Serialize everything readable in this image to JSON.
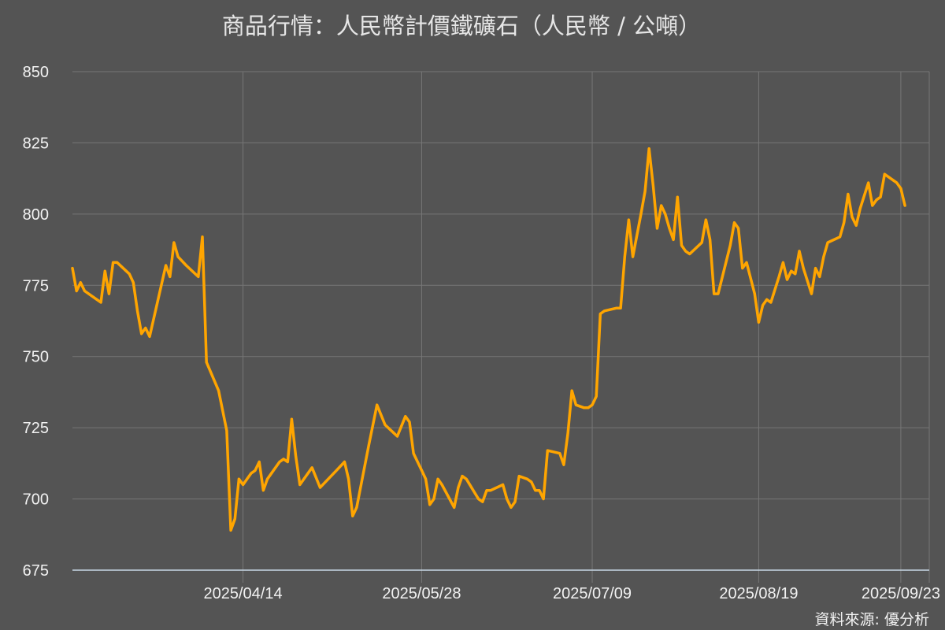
{
  "chart_data": {
    "type": "line",
    "title": "商品行情：人民幣計價鐵礦石（人民幣 / 公噸）",
    "source": "資料來源: 優分析",
    "ylim": [
      675,
      850
    ],
    "yticks": [
      675,
      700,
      725,
      750,
      775,
      800,
      825,
      850
    ],
    "xlim": [
      "2025-03-03",
      "2025-09-30"
    ],
    "xticks": [
      {
        "date": "2025-04-14",
        "label": "2025/04/14"
      },
      {
        "date": "2025-05-28",
        "label": "2025/05/28"
      },
      {
        "date": "2025-07-09",
        "label": "2025/07/09"
      },
      {
        "date": "2025-08-19",
        "label": "2025/08/19"
      },
      {
        "date": "2025-09-23",
        "label": "2025/09/23"
      }
    ],
    "grid": true,
    "colors": {
      "line": "#FFA500",
      "background": "#545454",
      "grid": "#767676"
    },
    "series": [
      {
        "points": [
          [
            "2025-03-03",
            781
          ],
          [
            "2025-03-04",
            773
          ],
          [
            "2025-03-05",
            776
          ],
          [
            "2025-03-06",
            773
          ],
          [
            "2025-03-10",
            769
          ],
          [
            "2025-03-11",
            780
          ],
          [
            "2025-03-12",
            772
          ],
          [
            "2025-03-13",
            783
          ],
          [
            "2025-03-14",
            783
          ],
          [
            "2025-03-17",
            779
          ],
          [
            "2025-03-18",
            776
          ],
          [
            "2025-03-19",
            766
          ],
          [
            "2025-03-20",
            758
          ],
          [
            "2025-03-21",
            760
          ],
          [
            "2025-03-22",
            757
          ],
          [
            "2025-03-26",
            782
          ],
          [
            "2025-03-27",
            778
          ],
          [
            "2025-03-28",
            790
          ],
          [
            "2025-03-29",
            785
          ],
          [
            "2025-03-31",
            782
          ],
          [
            "2025-04-03",
            778
          ],
          [
            "2025-04-04",
            792
          ],
          [
            "2025-04-05",
            748
          ],
          [
            "2025-04-08",
            738
          ],
          [
            "2025-04-10",
            724
          ],
          [
            "2025-04-11",
            689
          ],
          [
            "2025-04-12",
            693
          ],
          [
            "2025-04-13",
            707
          ],
          [
            "2025-04-14",
            705
          ],
          [
            "2025-04-15",
            707
          ],
          [
            "2025-04-16",
            709
          ],
          [
            "2025-04-17",
            710
          ],
          [
            "2025-04-18",
            713
          ],
          [
            "2025-04-19",
            703
          ],
          [
            "2025-04-20",
            707
          ],
          [
            "2025-04-23",
            713
          ],
          [
            "2025-04-24",
            714
          ],
          [
            "2025-04-25",
            713
          ],
          [
            "2025-04-26",
            728
          ],
          [
            "2025-04-27",
            715
          ],
          [
            "2025-04-28",
            705
          ],
          [
            "2025-04-29",
            707
          ],
          [
            "2025-05-01",
            711
          ],
          [
            "2025-05-03",
            704
          ],
          [
            "2025-05-07",
            710
          ],
          [
            "2025-05-09",
            713
          ],
          [
            "2025-05-10",
            707
          ],
          [
            "2025-05-11",
            694
          ],
          [
            "2025-05-12",
            697
          ],
          [
            "2025-05-15",
            719
          ],
          [
            "2025-05-17",
            733
          ],
          [
            "2025-05-19",
            726
          ],
          [
            "2025-05-22",
            722
          ],
          [
            "2025-05-24",
            729
          ],
          [
            "2025-05-25",
            727
          ],
          [
            "2025-05-26",
            716
          ],
          [
            "2025-05-28",
            710
          ],
          [
            "2025-05-29",
            707
          ],
          [
            "2025-05-30",
            698
          ],
          [
            "2025-05-31",
            700
          ],
          [
            "2025-06-01",
            707
          ],
          [
            "2025-06-02",
            705
          ],
          [
            "2025-06-05",
            697
          ],
          [
            "2025-06-06",
            704
          ],
          [
            "2025-06-07",
            708
          ],
          [
            "2025-06-08",
            707
          ],
          [
            "2025-06-11",
            700
          ],
          [
            "2025-06-12",
            699
          ],
          [
            "2025-06-13",
            703
          ],
          [
            "2025-06-14",
            703
          ],
          [
            "2025-06-17",
            705
          ],
          [
            "2025-06-18",
            700
          ],
          [
            "2025-06-19",
            697
          ],
          [
            "2025-06-20",
            699
          ],
          [
            "2025-06-21",
            708
          ],
          [
            "2025-06-23",
            707
          ],
          [
            "2025-06-24",
            706
          ],
          [
            "2025-06-25",
            703
          ],
          [
            "2025-06-26",
            703
          ],
          [
            "2025-06-27",
            700
          ],
          [
            "2025-06-28",
            717
          ],
          [
            "2025-07-01",
            716
          ],
          [
            "2025-07-02",
            712
          ],
          [
            "2025-07-03",
            723
          ],
          [
            "2025-07-04",
            738
          ],
          [
            "2025-07-05",
            733
          ],
          [
            "2025-07-07",
            732
          ],
          [
            "2025-07-08",
            732
          ],
          [
            "2025-07-09",
            733
          ],
          [
            "2025-07-10",
            736
          ],
          [
            "2025-07-11",
            765
          ],
          [
            "2025-07-12",
            766
          ],
          [
            "2025-07-15",
            767
          ],
          [
            "2025-07-16",
            767
          ],
          [
            "2025-07-17",
            785
          ],
          [
            "2025-07-18",
            798
          ],
          [
            "2025-07-19",
            785
          ],
          [
            "2025-07-21",
            800
          ],
          [
            "2025-07-22",
            808
          ],
          [
            "2025-07-23",
            823
          ],
          [
            "2025-07-24",
            810
          ],
          [
            "2025-07-25",
            795
          ],
          [
            "2025-07-26",
            803
          ],
          [
            "2025-07-27",
            800
          ],
          [
            "2025-07-28",
            795
          ],
          [
            "2025-07-29",
            791
          ],
          [
            "2025-07-30",
            806
          ],
          [
            "2025-07-31",
            789
          ],
          [
            "2025-08-01",
            787
          ],
          [
            "2025-08-02",
            786
          ],
          [
            "2025-08-05",
            790
          ],
          [
            "2025-08-06",
            798
          ],
          [
            "2025-08-07",
            791
          ],
          [
            "2025-08-08",
            772
          ],
          [
            "2025-08-09",
            772
          ],
          [
            "2025-08-12",
            789
          ],
          [
            "2025-08-13",
            797
          ],
          [
            "2025-08-14",
            795
          ],
          [
            "2025-08-15",
            781
          ],
          [
            "2025-08-16",
            783
          ],
          [
            "2025-08-18",
            772
          ],
          [
            "2025-08-19",
            762
          ],
          [
            "2025-08-20",
            768
          ],
          [
            "2025-08-21",
            770
          ],
          [
            "2025-08-22",
            769
          ],
          [
            "2025-08-24",
            778
          ],
          [
            "2025-08-25",
            783
          ],
          [
            "2025-08-26",
            777
          ],
          [
            "2025-08-27",
            780
          ],
          [
            "2025-08-28",
            779
          ],
          [
            "2025-08-29",
            787
          ],
          [
            "2025-08-30",
            781
          ],
          [
            "2025-09-01",
            772
          ],
          [
            "2025-09-02",
            781
          ],
          [
            "2025-09-03",
            778
          ],
          [
            "2025-09-04",
            785
          ],
          [
            "2025-09-05",
            790
          ],
          [
            "2025-09-08",
            792
          ],
          [
            "2025-09-09",
            797
          ],
          [
            "2025-09-10",
            807
          ],
          [
            "2025-09-11",
            799
          ],
          [
            "2025-09-12",
            796
          ],
          [
            "2025-09-13",
            802
          ],
          [
            "2025-09-15",
            811
          ],
          [
            "2025-09-16",
            803
          ],
          [
            "2025-09-17",
            805
          ],
          [
            "2025-09-18",
            806
          ],
          [
            "2025-09-19",
            814
          ],
          [
            "2025-09-22",
            811
          ],
          [
            "2025-09-23",
            809
          ],
          [
            "2025-09-24",
            803
          ]
        ]
      }
    ]
  }
}
